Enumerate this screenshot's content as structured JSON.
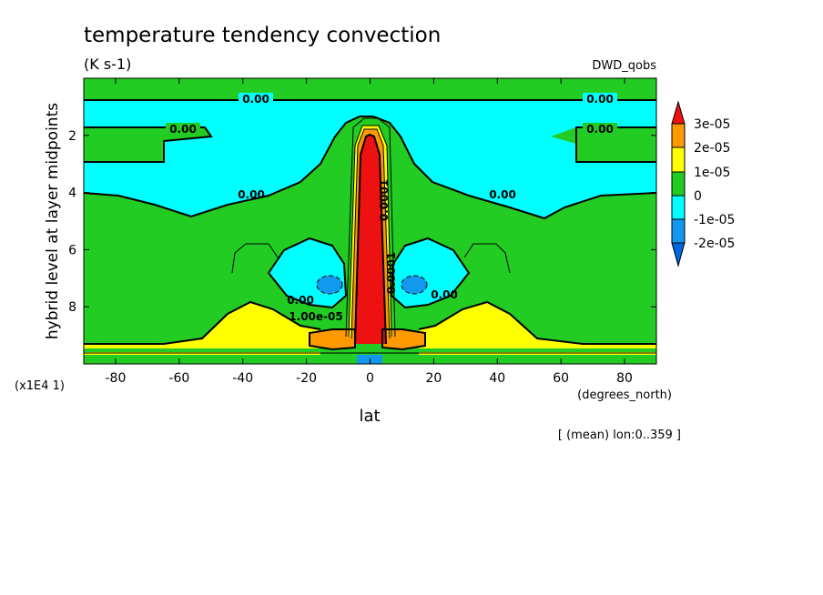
{
  "chart_data": {
    "type": "heatmap",
    "title": "temperature tendency convection",
    "units": "(K s-1)",
    "dataset": "DWD_qobs",
    "xlabel": "lat",
    "xunits": "(degrees_north)",
    "ylabel": "hybrid level at layer midpoints",
    "y_scale_note": "(x1E4 1)",
    "averaging_note": "[ (mean) lon:0..359 ]",
    "xlim": [
      -90,
      90
    ],
    "ylim": [
      10,
      0
    ],
    "x_ticks": [
      -80,
      -60,
      -40,
      -20,
      0,
      20,
      40,
      60,
      80
    ],
    "x_tick_labels": [
      "-80",
      "-60",
      "-40",
      "-20",
      "0",
      "20",
      "40",
      "60",
      "80"
    ],
    "y_ticks": [
      2,
      4,
      6,
      8
    ],
    "y_tick_labels": [
      "2",
      "4",
      "6",
      "8"
    ],
    "colorbar": {
      "labels": [
        "3e-05",
        "2e-05",
        "1e-05",
        "0",
        "-1e-05",
        "-2e-05"
      ],
      "colors": {
        "above_3e-05": "#ee1111",
        "2e-05_to_3e-05": "#ff9900",
        "1e-05_to_2e-05": "#ffff00",
        "0_to_1e-05": "#22cc22",
        "-1e-05_to_0": "#00ffff",
        "-2e-05_to_-1e-05": "#1199ee",
        "below_-2e-05": "#0066dd"
      }
    },
    "contour_labels": [
      "0.00",
      "0.00",
      "0.00",
      "0.00",
      "0.00",
      "0.00",
      "0.00",
      "0.00",
      "1.00e-05",
      "0.0001",
      "0.0001"
    ],
    "regions": [
      {
        "name": "upper near-zero band",
        "range": [
          -1e-05,
          0
        ],
        "lat": [
          -90,
          90
        ],
        "level": [
          1,
          4.5
        ]
      },
      {
        "name": "tropical convective core",
        "range": [
          3e-05,
          null
        ],
        "lat": [
          -4,
          4
        ],
        "level": [
          1.8,
          9.7
        ]
      },
      {
        "name": "southern negative lobe",
        "range": [
          -2e-05,
          -1e-05
        ],
        "lat": [
          -16,
          -11
        ],
        "level": [
          6.9,
          7.5
        ]
      },
      {
        "name": "northern negative lobe",
        "range": [
          -2e-05,
          -1e-05
        ],
        "lat": [
          11,
          16
        ],
        "level": [
          6.9,
          7.5
        ]
      },
      {
        "name": "midlatitude heating southern",
        "range": [
          1e-05,
          2e-05
        ],
        "lat": [
          -55,
          -25
        ],
        "level": [
          8,
          9.5
        ]
      },
      {
        "name": "midlatitude heating northern",
        "range": [
          1e-05,
          2e-05
        ],
        "lat": [
          25,
          55
        ],
        "level": [
          8,
          9.5
        ]
      }
    ]
  }
}
